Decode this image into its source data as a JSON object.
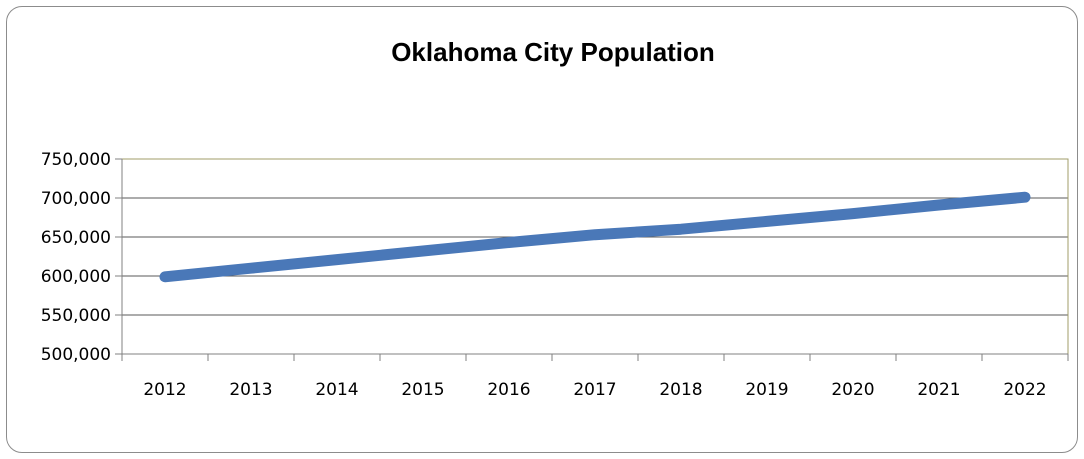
{
  "chart_data": {
    "type": "line",
    "title": "Oklahoma City Population",
    "xlabel": "",
    "ylabel": "",
    "categories": [
      "2012",
      "2013",
      "2014",
      "2015",
      "2016",
      "2017",
      "2018",
      "2019",
      "2020",
      "2021",
      "2022"
    ],
    "series": [
      {
        "values": [
          599000,
          610000,
          621000,
          632000,
          643000,
          653000,
          660000,
          670000,
          680000,
          691000,
          701000
        ]
      }
    ],
    "ylim": [
      500000,
      750000
    ],
    "yticks": [
      "500,000",
      "550,000",
      "600,000",
      "650,000",
      "700,000",
      "750,000"
    ],
    "ytick_values": [
      500000,
      550000,
      600000,
      650000,
      700000,
      750000
    ],
    "grid": true,
    "legend": "none",
    "colors": {
      "line": "#4a78b8",
      "grid": "#5a5a5a",
      "plot_border": "#a09c6a",
      "frame": "#8c8c8c"
    }
  }
}
